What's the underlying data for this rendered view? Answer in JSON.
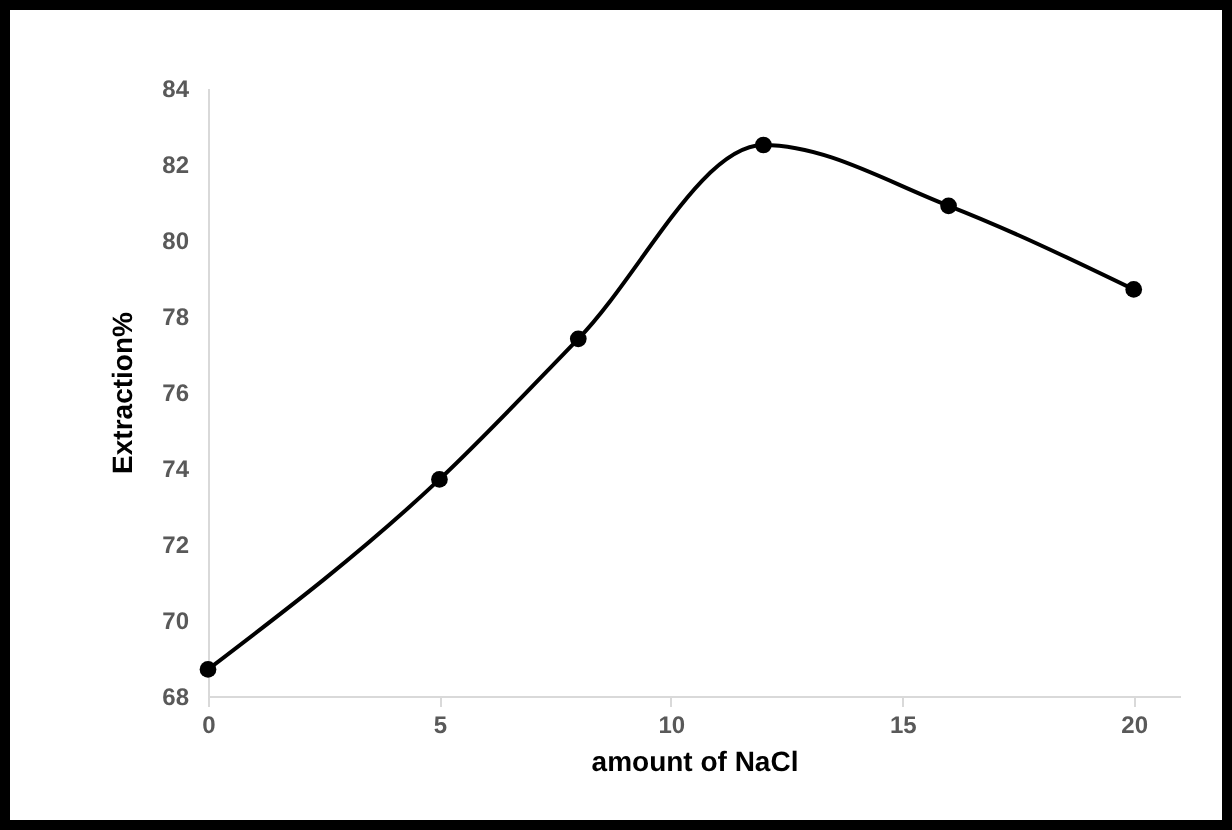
{
  "chart_data": {
    "type": "line",
    "xlabel": "amount of NaCl",
    "ylabel": "Extraction%",
    "x": [
      0,
      5,
      8,
      12,
      16,
      20
    ],
    "series": [
      {
        "color": "#000000",
        "values": [
          68.7,
          73.7,
          77.4,
          82.5,
          80.9,
          78.7
        ]
      }
    ],
    "xlim": [
      0,
      21
    ],
    "xticks": [
      0,
      5,
      10,
      15,
      20
    ],
    "ylim": [
      68,
      84
    ],
    "yticks": [
      68,
      70,
      72,
      74,
      76,
      78,
      80,
      82,
      84
    ],
    "grid": false,
    "legend": false,
    "marker": "circle",
    "line_style": "solid"
  }
}
